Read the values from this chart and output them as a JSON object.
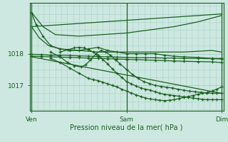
{
  "bg_color": "#cce8e0",
  "grid_color": "#aad0c8",
  "line_color": "#1a6020",
  "xlabel": "Pression niveau de la mer( hPa )",
  "xtick_labels": [
    "Ven",
    "Sam",
    "Dim"
  ],
  "xtick_positions": [
    0.0,
    1.0,
    2.0
  ],
  "ytick_labels": [
    "1017",
    "1018"
  ],
  "ytick_positions": [
    1017.0,
    1018.0
  ],
  "ylim": [
    1016.2,
    1019.6
  ],
  "xlim": [
    -0.02,
    2.02
  ],
  "lines": [
    {
      "x": [
        0.0,
        0.12,
        0.25,
        0.5,
        0.75,
        1.0,
        1.25,
        1.5,
        1.75,
        2.0
      ],
      "y": [
        1019.3,
        1018.85,
        1018.6,
        1018.55,
        1018.6,
        1018.65,
        1018.75,
        1018.85,
        1019.0,
        1019.2
      ],
      "marker": false
    },
    {
      "x": [
        0.0,
        0.08,
        0.18,
        0.3,
        0.5,
        0.7,
        1.0,
        1.3,
        1.6,
        1.9,
        2.0
      ],
      "y": [
        1018.85,
        1018.5,
        1018.25,
        1018.15,
        1018.1,
        1018.05,
        1018.05,
        1018.05,
        1018.05,
        1018.1,
        1018.05
      ],
      "marker": false
    },
    {
      "x": [
        0.0,
        0.05,
        0.12,
        0.2,
        0.3,
        0.4,
        0.5,
        0.6,
        0.7,
        0.8,
        0.9,
        1.0,
        1.1,
        1.2,
        1.3,
        1.4,
        1.5,
        1.6,
        1.75,
        1.9,
        2.0
      ],
      "y": [
        1019.28,
        1018.9,
        1018.55,
        1018.25,
        1018.15,
        1018.1,
        1018.1,
        1018.15,
        1018.2,
        1018.1,
        1018.05,
        1018.0,
        1018.0,
        1018.0,
        1018.0,
        1017.95,
        1017.92,
        1017.9,
        1017.88,
        1017.85,
        1017.85
      ],
      "marker": true
    },
    {
      "x": [
        0.0,
        0.1,
        0.2,
        0.3,
        0.4,
        0.5,
        0.6,
        0.7,
        0.8,
        0.9,
        1.0,
        1.1,
        1.2,
        1.3,
        1.4,
        1.5,
        1.6,
        1.75,
        1.9,
        2.0
      ],
      "y": [
        1017.98,
        1017.97,
        1017.95,
        1017.95,
        1017.94,
        1017.93,
        1017.92,
        1017.91,
        1017.9,
        1017.89,
        1017.88,
        1017.87,
        1017.87,
        1017.87,
        1017.86,
        1017.86,
        1017.85,
        1017.85,
        1017.84,
        1017.83
      ],
      "marker": true
    },
    {
      "x": [
        0.0,
        0.1,
        0.2,
        0.3,
        0.4,
        0.5,
        0.6,
        0.7,
        0.8,
        0.9,
        1.0,
        1.1,
        1.2,
        1.3,
        1.4,
        1.5,
        1.6,
        1.75,
        1.9,
        2.0
      ],
      "y": [
        1017.92,
        1017.91,
        1017.9,
        1017.89,
        1017.88,
        1017.87,
        1017.86,
        1017.85,
        1017.84,
        1017.83,
        1017.82,
        1017.81,
        1017.8,
        1017.79,
        1017.78,
        1017.77,
        1017.76,
        1017.75,
        1017.74,
        1017.72
      ],
      "marker": true
    },
    {
      "x": [
        0.0,
        2.0
      ],
      "y": [
        1017.9,
        1016.75
      ],
      "marker": false
    },
    {
      "x": [
        0.2,
        0.3,
        0.4,
        0.5,
        0.6,
        0.65,
        0.7,
        0.75,
        0.8,
        0.85,
        0.9,
        0.95,
        1.0,
        1.05,
        1.1,
        1.15,
        1.2,
        1.25,
        1.3,
        1.35,
        1.4,
        1.45,
        1.5,
        1.55,
        1.6,
        1.65,
        1.7,
        1.75,
        1.8,
        1.85,
        1.9,
        1.95,
        2.0
      ],
      "y": [
        1017.85,
        1017.72,
        1017.55,
        1017.38,
        1017.22,
        1017.18,
        1017.15,
        1017.1,
        1017.05,
        1017.0,
        1016.95,
        1016.88,
        1016.82,
        1016.76,
        1016.7,
        1016.65,
        1016.6,
        1016.57,
        1016.55,
        1016.53,
        1016.52,
        1016.53,
        1016.55,
        1016.58,
        1016.62,
        1016.65,
        1016.68,
        1016.72,
        1016.75,
        1016.78,
        1016.82,
        1016.88,
        1016.95
      ],
      "marker": true
    },
    {
      "x": [
        0.2,
        0.3,
        0.38,
        0.45,
        0.52,
        0.57,
        0.62,
        0.68,
        0.73,
        0.78,
        0.83,
        0.88,
        0.93,
        1.0,
        1.06,
        1.12,
        1.18,
        1.24,
        1.3,
        1.36,
        1.42,
        1.48,
        1.54,
        1.6,
        1.66,
        1.72,
        1.78,
        1.84,
        1.9,
        1.95,
        2.0
      ],
      "y": [
        1018.05,
        1017.9,
        1017.72,
        1017.62,
        1017.58,
        1017.65,
        1017.8,
        1018.0,
        1018.1,
        1018.05,
        1017.95,
        1017.82,
        1017.68,
        1017.5,
        1017.35,
        1017.22,
        1017.12,
        1017.06,
        1017.0,
        1016.97,
        1016.94,
        1016.92,
        1016.88,
        1016.85,
        1016.82,
        1016.8,
        1016.78,
        1016.76,
        1016.75,
        1016.75,
        1016.75
      ],
      "marker": true
    },
    {
      "x": [
        0.3,
        0.38,
        0.45,
        0.5,
        0.55,
        0.6,
        0.65,
        0.7,
        0.75,
        0.8,
        0.85,
        0.9,
        0.95,
        1.0,
        1.05,
        1.1,
        1.15,
        1.2,
        1.25,
        1.3,
        1.35,
        1.4,
        1.45,
        1.5,
        1.55,
        1.6,
        1.65,
        1.7,
        1.75,
        1.8,
        1.85,
        1.9,
        1.95,
        2.0
      ],
      "y": [
        1018.05,
        1018.12,
        1018.18,
        1018.2,
        1018.18,
        1018.12,
        1018.05,
        1017.95,
        1017.82,
        1017.68,
        1017.52,
        1017.38,
        1017.25,
        1017.12,
        1017.05,
        1016.98,
        1016.92,
        1016.88,
        1016.85,
        1016.8,
        1016.75,
        1016.72,
        1016.7,
        1016.68,
        1016.66,
        1016.64,
        1016.62,
        1016.6,
        1016.58,
        1016.56,
        1016.55,
        1016.55,
        1016.55,
        1016.55
      ],
      "marker": true
    },
    {
      "x": [
        0.0,
        2.0
      ],
      "y": [
        1018.85,
        1019.25
      ],
      "marker": false
    }
  ]
}
